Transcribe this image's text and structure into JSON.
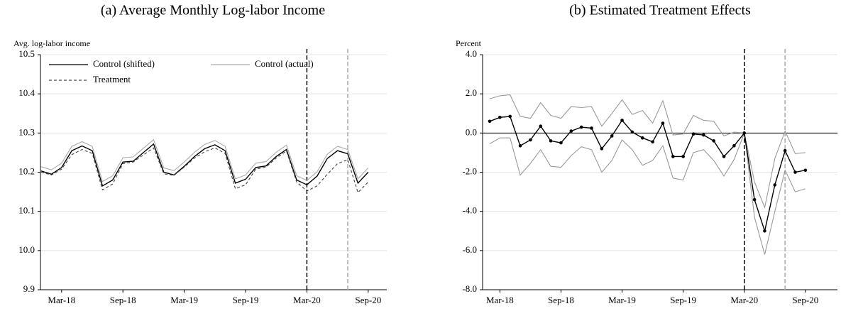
{
  "chart_data": [
    {
      "type": "line",
      "title": "(a) Average Monthly Log-labor Income",
      "y_label": "Avg. log-labor income",
      "categories": [
        null,
        null,
        "Mar-18",
        null,
        null,
        null,
        null,
        null,
        "Sep-18",
        null,
        null,
        null,
        null,
        null,
        "Mar-19",
        null,
        null,
        null,
        null,
        null,
        "Sep-19",
        null,
        null,
        null,
        null,
        null,
        "Mar-20",
        null,
        null,
        null,
        null,
        null,
        "Sep-20"
      ],
      "ylim": [
        9.9,
        10.5
      ],
      "yticks": [
        9.9,
        {
          "value": 10.0,
          "label": "10.0"
        },
        10.1,
        10.2,
        10.3,
        10.4,
        10.5
      ],
      "grid": true,
      "vlines": [
        {
          "index": 26,
          "color": "#000000"
        },
        {
          "index": 30,
          "color": "#aaaaaa"
        }
      ],
      "legend": "upper left",
      "series": [
        {
          "name": "Control (shifted)",
          "color": "#000000",
          "dash": "none",
          "values": [
            10.203,
            10.195,
            10.212,
            10.255,
            10.267,
            10.255,
            10.165,
            10.18,
            10.226,
            10.228,
            10.25,
            10.272,
            10.2,
            10.193,
            10.215,
            10.24,
            10.26,
            10.27,
            10.255,
            10.172,
            10.182,
            10.212,
            10.216,
            10.24,
            10.258,
            10.18,
            10.168,
            10.19,
            10.235,
            10.255,
            10.247,
            10.172,
            10.2
          ]
        },
        {
          "name": "Control (actual)",
          "color": "#aaaaaa",
          "dash": "none",
          "values": [
            10.214,
            10.206,
            10.223,
            10.266,
            10.278,
            10.266,
            10.176,
            10.191,
            10.237,
            10.239,
            10.261,
            10.283,
            10.211,
            10.204,
            10.226,
            10.251,
            10.271,
            10.281,
            10.266,
            10.183,
            10.193,
            10.223,
            10.227,
            10.251,
            10.269,
            10.191,
            10.179,
            10.201,
            10.246,
            10.266,
            10.258,
            10.183,
            10.211
          ]
        },
        {
          "name": "Treatment",
          "color": "#444444",
          "dash": "4,3",
          "values": [
            10.2,
            10.193,
            10.208,
            10.245,
            10.258,
            10.248,
            10.155,
            10.17,
            10.222,
            10.226,
            10.244,
            10.262,
            10.196,
            10.192,
            10.213,
            10.236,
            10.252,
            10.262,
            10.248,
            10.158,
            10.168,
            10.208,
            10.213,
            10.236,
            10.254,
            10.175,
            10.152,
            10.165,
            10.195,
            10.222,
            10.232,
            10.148,
            10.175
          ]
        }
      ]
    },
    {
      "type": "line",
      "title": "(b) Estimated Treatment Effects",
      "y_label": "Percent",
      "categories": [
        null,
        "Mar-18",
        null,
        null,
        null,
        null,
        null,
        "Sep-18",
        null,
        null,
        null,
        null,
        null,
        "Mar-19",
        null,
        null,
        null,
        null,
        null,
        "Sep-19",
        null,
        null,
        null,
        null,
        null,
        "Mar-20",
        null,
        null,
        null,
        null,
        null,
        "Sep-20"
      ],
      "ylim": [
        -8,
        4
      ],
      "yticks": [
        {
          "value": -8,
          "label": "-8.0"
        },
        {
          "value": -6,
          "label": "-6.0"
        },
        {
          "value": -4,
          "label": "-4.0"
        },
        {
          "value": -2,
          "label": "-2.0"
        },
        {
          "value": 0,
          "label": "0.0"
        },
        {
          "value": 2,
          "label": "2.0"
        },
        {
          "value": 4,
          "label": "4.0"
        }
      ],
      "grid": true,
      "zero_line": true,
      "vlines": [
        {
          "index": 25,
          "color": "#000000"
        },
        {
          "index": 29,
          "color": "#aaaaaa"
        }
      ],
      "series": [
        {
          "color": "#999999",
          "dash": "none",
          "values": [
            1.75,
            1.9,
            1.95,
            0.85,
            0.75,
            1.55,
            0.9,
            0.75,
            1.35,
            1.3,
            1.35,
            0.35,
            1.0,
            1.7,
            0.95,
            1.15,
            0.5,
            1.65,
            -0.1,
            -0.05,
            0.9,
            0.65,
            0.6,
            -0.15,
            0.05,
            0.0,
            -2.5,
            -3.8,
            -1.3,
            0.1,
            -1.05,
            -1.0
          ]
        },
        {
          "color": "#999999",
          "dash": "none",
          "values": [
            -0.55,
            -0.25,
            -0.25,
            -2.15,
            -1.55,
            -0.85,
            -1.7,
            -1.75,
            -1.15,
            -0.7,
            -0.85,
            -2.0,
            -1.4,
            -0.35,
            -0.85,
            -1.65,
            -1.4,
            -0.65,
            -2.3,
            -2.4,
            -1.0,
            -0.85,
            -1.4,
            -2.2,
            -1.35,
            0.0,
            -4.3,
            -6.2,
            -4.0,
            -1.9,
            -3.0,
            -2.85
          ]
        },
        {
          "color": "#000000",
          "dash": "none",
          "markers": true,
          "values": [
            0.6,
            0.8,
            0.85,
            -0.65,
            -0.35,
            0.35,
            -0.4,
            -0.5,
            0.1,
            0.3,
            0.25,
            -0.8,
            -0.15,
            0.65,
            0.05,
            -0.25,
            -0.45,
            0.5,
            -1.2,
            -1.2,
            -0.05,
            -0.1,
            -0.4,
            -1.2,
            -0.65,
            0.0,
            -3.4,
            -5.0,
            -2.65,
            -0.9,
            -2.0,
            -1.9
          ]
        }
      ]
    }
  ]
}
